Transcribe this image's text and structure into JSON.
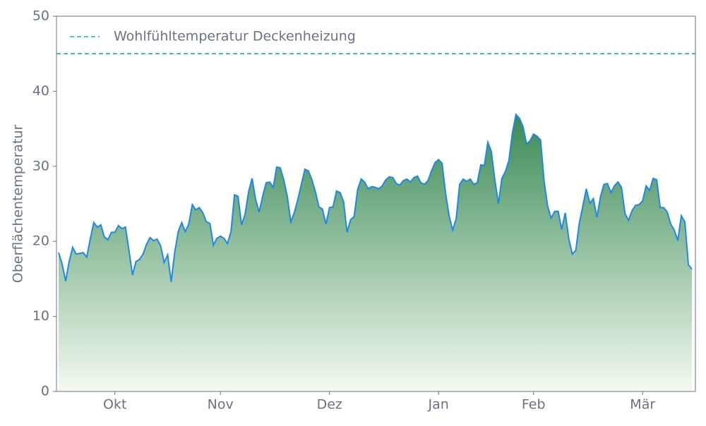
{
  "chart_data": {
    "type": "area",
    "y_label": "Oberflächentemperatur",
    "categories": [
      null,
      null,
      null,
      null,
      null,
      null,
      null,
      null,
      null,
      null,
      null,
      null,
      null,
      null,
      null,
      null,
      "Okt",
      null,
      null,
      null,
      null,
      null,
      null,
      null,
      null,
      null,
      null,
      null,
      null,
      null,
      null,
      null,
      null,
      null,
      null,
      null,
      null,
      null,
      null,
      null,
      null,
      null,
      null,
      null,
      null,
      null,
      "Nov",
      null,
      null,
      null,
      null,
      null,
      null,
      null,
      null,
      null,
      null,
      null,
      null,
      null,
      null,
      null,
      null,
      null,
      null,
      null,
      null,
      null,
      null,
      null,
      null,
      null,
      null,
      null,
      null,
      null,
      null,
      "Dez",
      null,
      null,
      null,
      null,
      null,
      null,
      null,
      null,
      null,
      null,
      null,
      null,
      null,
      null,
      null,
      null,
      null,
      null,
      null,
      null,
      null,
      null,
      null,
      null,
      null,
      null,
      null,
      null,
      null,
      null,
      "Jan",
      null,
      null,
      null,
      null,
      null,
      null,
      null,
      null,
      null,
      null,
      null,
      null,
      null,
      null,
      null,
      null,
      null,
      null,
      null,
      null,
      null,
      null,
      null,
      null,
      null,
      null,
      "Feb",
      null,
      null,
      null,
      null,
      null,
      null,
      null,
      null,
      null,
      null,
      null,
      null,
      null,
      null,
      null,
      null,
      null,
      null,
      null,
      null,
      null,
      null,
      null,
      null,
      null,
      null,
      null,
      null,
      null,
      null,
      "Mär",
      null,
      null,
      null,
      null,
      null,
      null,
      null,
      null,
      null,
      null,
      null,
      null,
      null,
      null
    ],
    "series": [
      {
        "color": "#1e88e5",
        "fill_top": "#3a8a55",
        "fill_bottom": "#f4faf1",
        "values": [
          18.5,
          17,
          14.7,
          17.3,
          19.2,
          18.3,
          18.4,
          18.5,
          17.9,
          20.3,
          22.5,
          21.9,
          22.2,
          20.6,
          20.2,
          21.2,
          21.2,
          22.1,
          21.7,
          21.9,
          18.8,
          15.5,
          17.3,
          17.6,
          18.3,
          19.6,
          20.5,
          20.1,
          20.3,
          19.4,
          17.2,
          18.2,
          14.6,
          18.5,
          21.3,
          22.5,
          21.3,
          22.3,
          24.9,
          24.2,
          24.5,
          23.8,
          22.6,
          22.4,
          19.5,
          20.4,
          20.7,
          20.4,
          19.7,
          21.3,
          26.2,
          26,
          22.2,
          23.6,
          26.6,
          28.4,
          25.6,
          23.9,
          26,
          27.8,
          27.9,
          27.2,
          29.9,
          29.8,
          28.2,
          26,
          22.6,
          23.8,
          25.6,
          27.6,
          29.6,
          29.4,
          28.2,
          26.6,
          24.6,
          24.3,
          22.3,
          24.5,
          24.6,
          26.7,
          26.5,
          25.3,
          21.2,
          22.9,
          23.3,
          26.9,
          28.3,
          27.9,
          27,
          27.3,
          27.2,
          27,
          27.4,
          28.2,
          28.6,
          28.5,
          27.7,
          27.5,
          28.1,
          28.3,
          27.9,
          28.5,
          28.7,
          27.8,
          27.6,
          28.1,
          29.4,
          30.5,
          30.9,
          30.4,
          26.4,
          23.4,
          21.5,
          23,
          27.6,
          28.3,
          28,
          28.3,
          27.6,
          27.8,
          30.2,
          30.1,
          33.2,
          32,
          28.2,
          25,
          28.4,
          29.3,
          30.8,
          34.5,
          36.9,
          36.4,
          35.3,
          33,
          33.4,
          34.3,
          34,
          33.5,
          28,
          24.7,
          23.1,
          24,
          24,
          21.6,
          23.8,
          20.4,
          18.3,
          18.8,
          22.4,
          24.7,
          27,
          25.1,
          25.7,
          23.2,
          25.9,
          27.6,
          27.7,
          26.5,
          27.4,
          27.9,
          27.2,
          23.7,
          22.8,
          24.1,
          24.8,
          24.9,
          25.4,
          27.4,
          26.8,
          28.4,
          28.2,
          24.5,
          24.5,
          23.9,
          22.3,
          21.5,
          20.1,
          23.4,
          22.6,
          16.9,
          16.3
        ]
      }
    ],
    "reference_lines": [
      {
        "name": "Wohlfühltemperatur Deckenheizung",
        "value": 45,
        "color": "#1db38a",
        "style": "dashed"
      }
    ],
    "legend": "upper left",
    "ylim": [
      0,
      50
    ],
    "yticks": [
      0,
      10,
      20,
      30,
      40,
      50
    ]
  }
}
